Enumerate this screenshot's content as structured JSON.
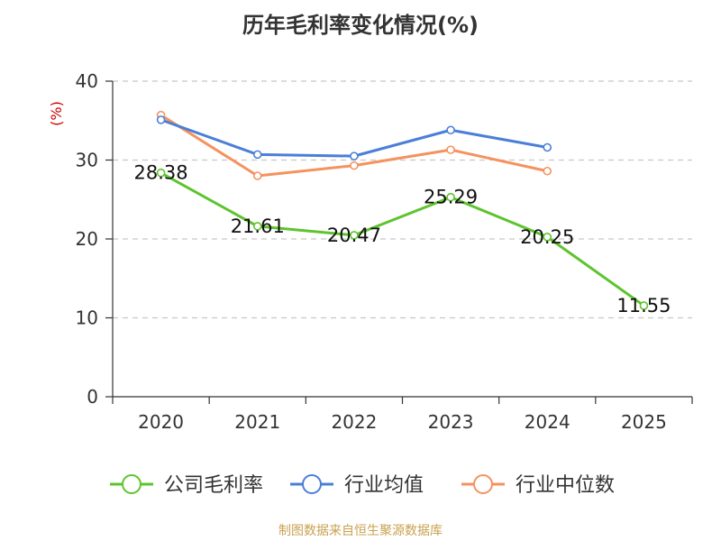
{
  "chart_data": {
    "type": "line",
    "title": "历年毛利率变化情况(%)",
    "xlabel": "",
    "ylabel": "(%)",
    "ylim": [
      0,
      40
    ],
    "yticks": [
      0,
      10,
      20,
      30,
      40
    ],
    "categories": [
      "2020",
      "2021",
      "2022",
      "2023",
      "2024",
      "2025"
    ],
    "grid": true,
    "legend_position": "bottom",
    "series": [
      {
        "name": "公司毛利率",
        "color": "#5ec42e",
        "show_labels": true,
        "values": [
          28.38,
          21.61,
          20.47,
          25.29,
          20.25,
          11.55
        ],
        "labels": [
          "28.38",
          "21.61",
          "20.47",
          "25.29",
          "20.25",
          "11.55"
        ]
      },
      {
        "name": "行业均值",
        "color": "#4a7fd8",
        "show_labels": false,
        "values": [
          35.1,
          30.7,
          30.5,
          33.8,
          31.6,
          null
        ]
      },
      {
        "name": "行业中位数",
        "color": "#f5925e",
        "show_labels": false,
        "values": [
          35.7,
          28.0,
          29.3,
          31.3,
          28.6,
          null
        ]
      }
    ]
  },
  "footer": {
    "source": "制图数据来自恒生聚源数据库"
  }
}
